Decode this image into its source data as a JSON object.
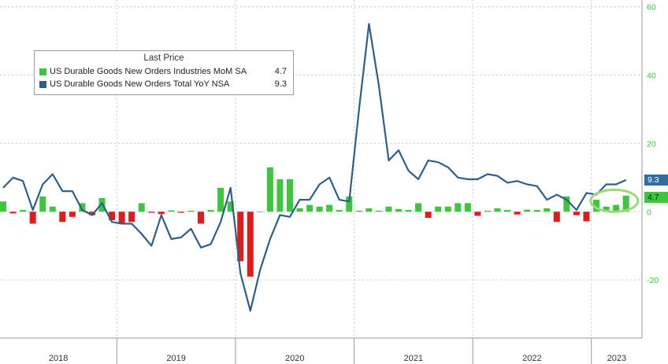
{
  "colors": {
    "bar_positive": "#3ec43e",
    "bar_negative": "#dd1c1c",
    "line": "#2f5f86",
    "axis_label_color": "#3ec43e",
    "highlight": "#9ed87a",
    "grid": "#c9c9c9",
    "tag_line_bg": "#2f6fa0",
    "tag_bar_bg": "#3ec43e"
  },
  "chart_data": {
    "type": "bar",
    "y_axis_position": "right",
    "ylim": [
      -37,
      62
    ],
    "yticks": [
      60,
      40,
      20,
      0,
      -20
    ],
    "grid": true,
    "x_start": "2018-01",
    "x_period": "monthly",
    "years": [
      "2018",
      "2019",
      "2020",
      "2021",
      "2022",
      "2023"
    ],
    "legend": {
      "title": "Last Price",
      "placement": "top-left",
      "items": [
        {
          "label": "US Durable Goods New Orders Industries MoM SA",
          "value": "4.7",
          "kind": "bar"
        },
        {
          "label": "US Durable Goods New Orders Total YoY NSA",
          "value": "9.3",
          "kind": "line"
        }
      ]
    },
    "last_value_tags": {
      "line": "9.3",
      "bar": "4.7"
    },
    "series": [
      {
        "name": "US Durable Goods New Orders Industries MoM SA",
        "type": "bar",
        "values": [
          3.0,
          -0.5,
          0.5,
          -3.5,
          4.5,
          1.5,
          -3.0,
          -1.5,
          2.5,
          -1.0,
          4.0,
          -2.5,
          -3.5,
          -3.0,
          2.5,
          -0.3,
          -0.7,
          0.4,
          -0.3,
          0.3,
          -3.5,
          0.5,
          7.0,
          3.0,
          -14.5,
          -19.0,
          0.0,
          13.0,
          9.5,
          9.5,
          1.0,
          2.0,
          1.5,
          2.0,
          0.5,
          4.5,
          0.3,
          1.0,
          0.3,
          1.5,
          0.8,
          0.5,
          2.5,
          -1.8,
          1.5,
          1.5,
          2.5,
          2.5,
          -1.2,
          0.3,
          1.0,
          0.5,
          -0.8,
          0.6,
          0.5,
          1.0,
          -3.0,
          4.5,
          -1.0,
          -2.8,
          3.5,
          1.5,
          2.0,
          4.7
        ]
      },
      {
        "name": "US Durable Goods New Orders Total YoY NSA",
        "type": "line",
        "values": [
          7.0,
          10.0,
          9.0,
          0.5,
          8.0,
          11.0,
          6.0,
          6.0,
          0.5,
          -1.0,
          2.5,
          -3.0,
          -3.5,
          -3.5,
          -6.5,
          -10.0,
          -1.0,
          -8.0,
          -7.5,
          -5.0,
          -10.5,
          -9.5,
          -3.0,
          7.0,
          -18.0,
          -29.0,
          -17.0,
          -8.0,
          -1.0,
          -1.5,
          3.5,
          3.5,
          8.0,
          10.0,
          3.5,
          3.0,
          30.0,
          55.0,
          37.0,
          15.0,
          18.0,
          12.0,
          9.5,
          15.0,
          14.5,
          13.0,
          10.0,
          9.5,
          9.5,
          11.0,
          10.5,
          8.5,
          9.0,
          8.0,
          7.5,
          3.5,
          5.0,
          3.5,
          0.5,
          5.5,
          5.0,
          8.0,
          8.0,
          9.3
        ]
      }
    ]
  }
}
